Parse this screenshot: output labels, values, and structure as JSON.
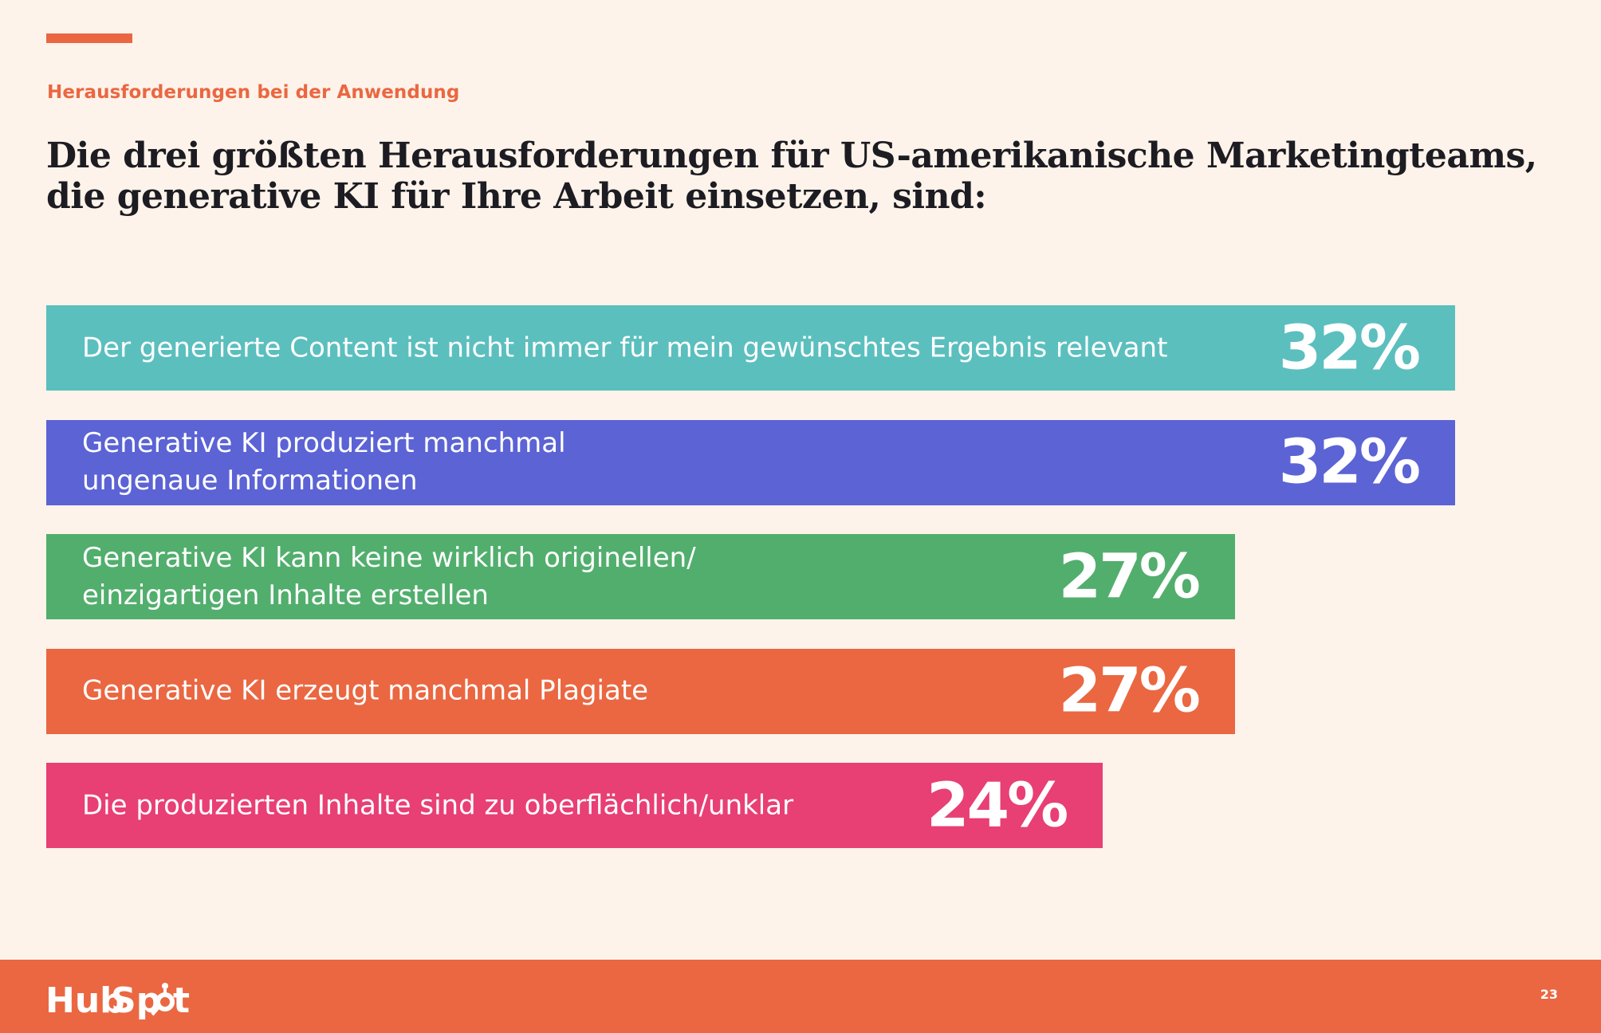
{
  "colors": {
    "background": "#fdf3ea",
    "accent": "#ea6741",
    "headline": "#1c1c22",
    "bar_text": "#ffffff"
  },
  "header": {
    "eyebrow": "Herausforderungen bei der Anwendung",
    "title_lines": [
      "Die drei größten Herausforderungen für US-amerikanische Marketingteams,",
      "die generative KI für Ihre Arbeit einsetzen, sind:"
    ]
  },
  "chart_data": {
    "type": "bar",
    "orientation": "horizontal",
    "unit": "%",
    "xlim": [
      0,
      32
    ],
    "grid": false,
    "legend": "none",
    "bars": [
      {
        "category": "Der generierte Content ist nicht immer für mein gewünschtes Ergebnis relevant",
        "value": 32,
        "value_label": "32%",
        "color": "#5bbfbe"
      },
      {
        "category": "Generative KI produziert manchmal\nungenaue Informationen",
        "value": 32,
        "value_label": "32%",
        "color": "#5b63d5"
      },
      {
        "category": "Generative KI kann keine wirklich originellen/\neinzigartigen Inhalte erstellen",
        "value": 27,
        "value_label": "27%",
        "color": "#52ae6d"
      },
      {
        "category": "Generative KI erzeugt manchmal Plagiate",
        "value": 27,
        "value_label": "27%",
        "color": "#ea6741"
      },
      {
        "category": "Die produzierten Inhalte sind zu oberflächlich/unklar",
        "value": 24,
        "value_label": "24%",
        "color": "#e83f74"
      }
    ]
  },
  "footer": {
    "logo_text": "HubSpot",
    "logo_icon": "hubspot-sprocket-icon",
    "page_number": "23"
  }
}
